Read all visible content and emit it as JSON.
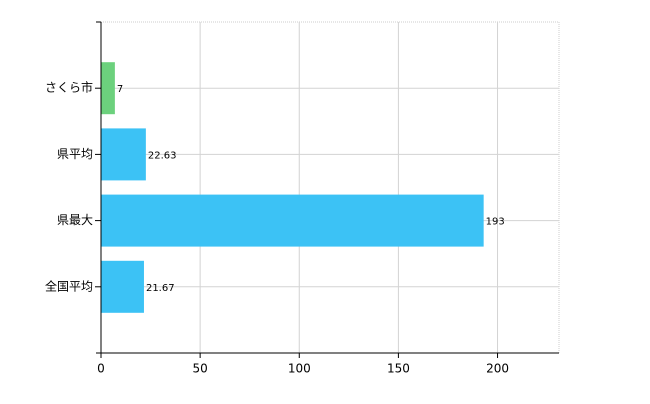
{
  "chart_data": {
    "type": "bar",
    "orientation": "horizontal",
    "categories": [
      "さくら市",
      "県平均",
      "県最大",
      "全国平均"
    ],
    "values": [
      7,
      22.63,
      193,
      21.67
    ],
    "colors": [
      "#6cd17d",
      "#3cc2f5",
      "#3cc2f5",
      "#3cc2f5"
    ],
    "xlim": [
      0,
      231
    ],
    "xticks": [
      0,
      50,
      100,
      150,
      200
    ],
    "grid": true
  }
}
